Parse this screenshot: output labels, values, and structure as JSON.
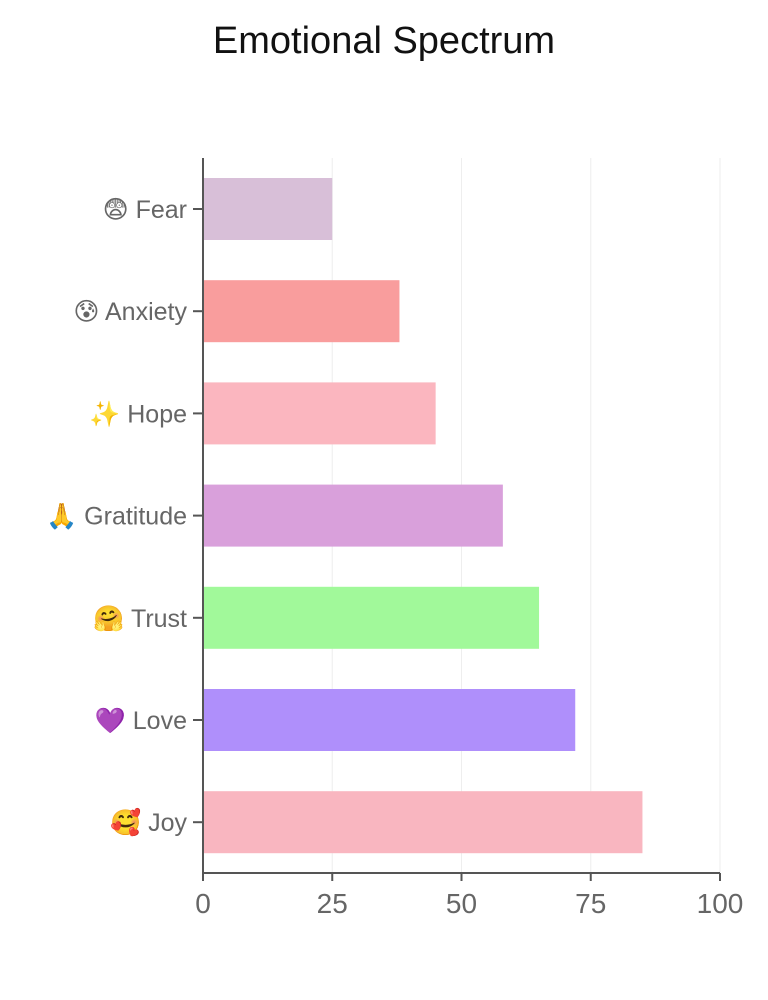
{
  "chart_data": {
    "type": "bar",
    "orientation": "horizontal",
    "title": "Emotional Spectrum",
    "xlabel": "",
    "ylabel": "",
    "xlim": [
      0,
      100
    ],
    "x_ticks": [
      0,
      25,
      50,
      75,
      100
    ],
    "grid": "vertical",
    "categories": [
      {
        "emoji": "😨",
        "name": "Fear"
      },
      {
        "emoji": "😰",
        "name": "Anxiety"
      },
      {
        "emoji": "✨",
        "name": "Hope"
      },
      {
        "emoji": "🙏",
        "name": "Gratitude"
      },
      {
        "emoji": "🤗",
        "name": "Trust"
      },
      {
        "emoji": "💜",
        "name": "Love"
      },
      {
        "emoji": "🥰",
        "name": "Joy"
      }
    ],
    "values": [
      25,
      38,
      45,
      58,
      65,
      72,
      85
    ],
    "colors": [
      "#d8bfd8",
      "#f99d9d",
      "#fbb6bf",
      "#d9a0db",
      "#a1f99a",
      "#af8ffb",
      "#f9b6c0"
    ]
  }
}
